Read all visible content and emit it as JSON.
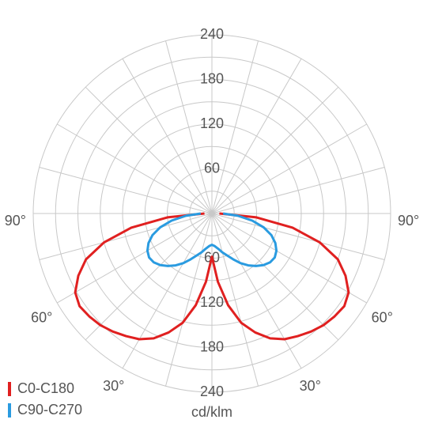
{
  "chart_data": {
    "type": "polar",
    "unit": "cd/klm",
    "rlim": [
      0,
      240
    ],
    "rgrid": [
      30,
      60,
      90,
      120,
      150,
      180,
      210,
      240
    ],
    "rticks": [
      60,
      120,
      180,
      240
    ],
    "angle_grid_step": 15,
    "angle_ticks": [
      {
        "value": -90,
        "label": "90°"
      },
      {
        "value": -60,
        "label": "60°"
      },
      {
        "value": -30,
        "label": "30°"
      },
      {
        "value": 30,
        "label": "30°"
      },
      {
        "value": 60,
        "label": "60°"
      },
      {
        "value": 90,
        "label": "90°"
      }
    ],
    "angles": [
      -90,
      -85,
      -80,
      -75,
      -70,
      -65,
      -60,
      -55,
      -50,
      -45,
      -40,
      -35,
      -30,
      -25,
      -20,
      -15,
      -10,
      -5,
      0,
      5,
      10,
      15,
      20,
      25,
      30,
      35,
      40,
      45,
      50,
      55,
      60,
      65,
      70,
      75,
      80,
      85,
      90
    ],
    "series": [
      {
        "name": "C0-C180",
        "color": "#e02020",
        "values": [
          10,
          60,
          110,
          150,
          180,
          198,
          212,
          217,
          215,
          212,
          207,
          201,
          195,
          185,
          170,
          152,
          125,
          92,
          58,
          92,
          125,
          152,
          170,
          185,
          195,
          201,
          207,
          212,
          215,
          217,
          212,
          198,
          180,
          150,
          110,
          60,
          10
        ]
      },
      {
        "name": "C90-C270",
        "color": "#2a9be0",
        "values": [
          15,
          35,
          55,
          72,
          85,
          94,
          100,
          103,
          102,
          98,
          92,
          85,
          77,
          68,
          60,
          54,
          48,
          44,
          42,
          44,
          48,
          54,
          60,
          68,
          77,
          85,
          92,
          98,
          102,
          103,
          100,
          94,
          85,
          72,
          55,
          35,
          15
        ]
      }
    ]
  }
}
